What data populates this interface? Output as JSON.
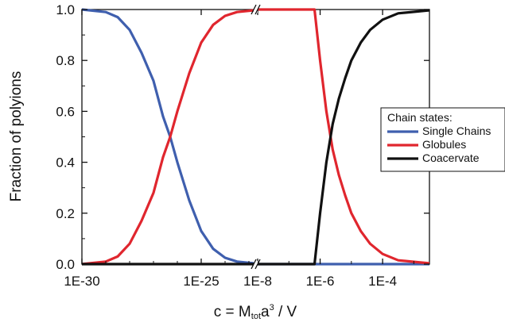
{
  "chart_data": {
    "type": "line",
    "xlabel": "c = M",
    "xlabel_sub": "tot",
    "xlabel_mid": "a",
    "xlabel_sup": "3",
    "xlabel_end": " / V",
    "ylabel": "Fraction of polyions",
    "x_scale": "log, broken axis",
    "x_segments": [
      {
        "log10_min": -30,
        "log10_max": -22.8
      },
      {
        "log10_min": -8,
        "log10_max": -2.5
      }
    ],
    "x_ticks": [
      {
        "segment": 0,
        "log10": -30,
        "label": "1E-30"
      },
      {
        "segment": 0,
        "log10": -25,
        "label": "1E-25"
      },
      {
        "segment": 1,
        "log10": -8,
        "label": "1E-8"
      },
      {
        "segment": 1,
        "log10": -6,
        "label": "1E-6"
      },
      {
        "segment": 1,
        "log10": -4,
        "label": "1E-4"
      }
    ],
    "ylim": [
      0,
      1
    ],
    "y_ticks": [
      "0.0",
      "0.2",
      "0.4",
      "0.6",
      "0.8",
      "1.0"
    ],
    "grid": false,
    "legend": {
      "title": "Chain states:",
      "placement": "right"
    },
    "series": [
      {
        "name": "Single Chains",
        "color": "#3f5fae",
        "points": [
          [
            -30,
            1.0
          ],
          [
            -29,
            0.99
          ],
          [
            -28.5,
            0.97
          ],
          [
            -28,
            0.92
          ],
          [
            -27.5,
            0.83
          ],
          [
            -27,
            0.72
          ],
          [
            -26.6,
            0.58
          ],
          [
            -26.3,
            0.5
          ],
          [
            -26,
            0.4
          ],
          [
            -25.5,
            0.25
          ],
          [
            -25,
            0.13
          ],
          [
            -24.5,
            0.06
          ],
          [
            -24,
            0.025
          ],
          [
            -23.5,
            0.01
          ],
          [
            -22.8,
            0.003
          ],
          [
            -8,
            0.0
          ],
          [
            -2.5,
            0.0
          ]
        ]
      },
      {
        "name": "Globules",
        "color": "#e0262e",
        "points": [
          [
            -30,
            0.0
          ],
          [
            -29,
            0.01
          ],
          [
            -28.5,
            0.03
          ],
          [
            -28,
            0.08
          ],
          [
            -27.5,
            0.17
          ],
          [
            -27,
            0.28
          ],
          [
            -26.6,
            0.42
          ],
          [
            -26.3,
            0.5
          ],
          [
            -26,
            0.6
          ],
          [
            -25.5,
            0.75
          ],
          [
            -25,
            0.87
          ],
          [
            -24.5,
            0.94
          ],
          [
            -24,
            0.975
          ],
          [
            -23.5,
            0.99
          ],
          [
            -22.8,
            0.997
          ],
          [
            -8,
            1.0
          ],
          [
            -6.18,
            1.0
          ],
          [
            -6.0,
            0.8
          ],
          [
            -5.8,
            0.6
          ],
          [
            -5.6,
            0.45
          ],
          [
            -5.4,
            0.35
          ],
          [
            -5.2,
            0.27
          ],
          [
            -5.0,
            0.2
          ],
          [
            -4.7,
            0.13
          ],
          [
            -4.4,
            0.08
          ],
          [
            -4.0,
            0.04
          ],
          [
            -3.5,
            0.015
          ],
          [
            -2.5,
            0.003
          ]
        ]
      },
      {
        "name": "Coacervate",
        "color": "#111111",
        "points": [
          [
            -30,
            0.0
          ],
          [
            -22.8,
            0.0
          ],
          [
            -8,
            0.0
          ],
          [
            -6.18,
            0.0
          ],
          [
            -6.0,
            0.2
          ],
          [
            -5.8,
            0.4
          ],
          [
            -5.6,
            0.55
          ],
          [
            -5.4,
            0.65
          ],
          [
            -5.2,
            0.73
          ],
          [
            -5.0,
            0.8
          ],
          [
            -4.7,
            0.87
          ],
          [
            -4.4,
            0.92
          ],
          [
            -4.0,
            0.96
          ],
          [
            -3.5,
            0.985
          ],
          [
            -2.5,
            0.997
          ]
        ]
      }
    ]
  }
}
